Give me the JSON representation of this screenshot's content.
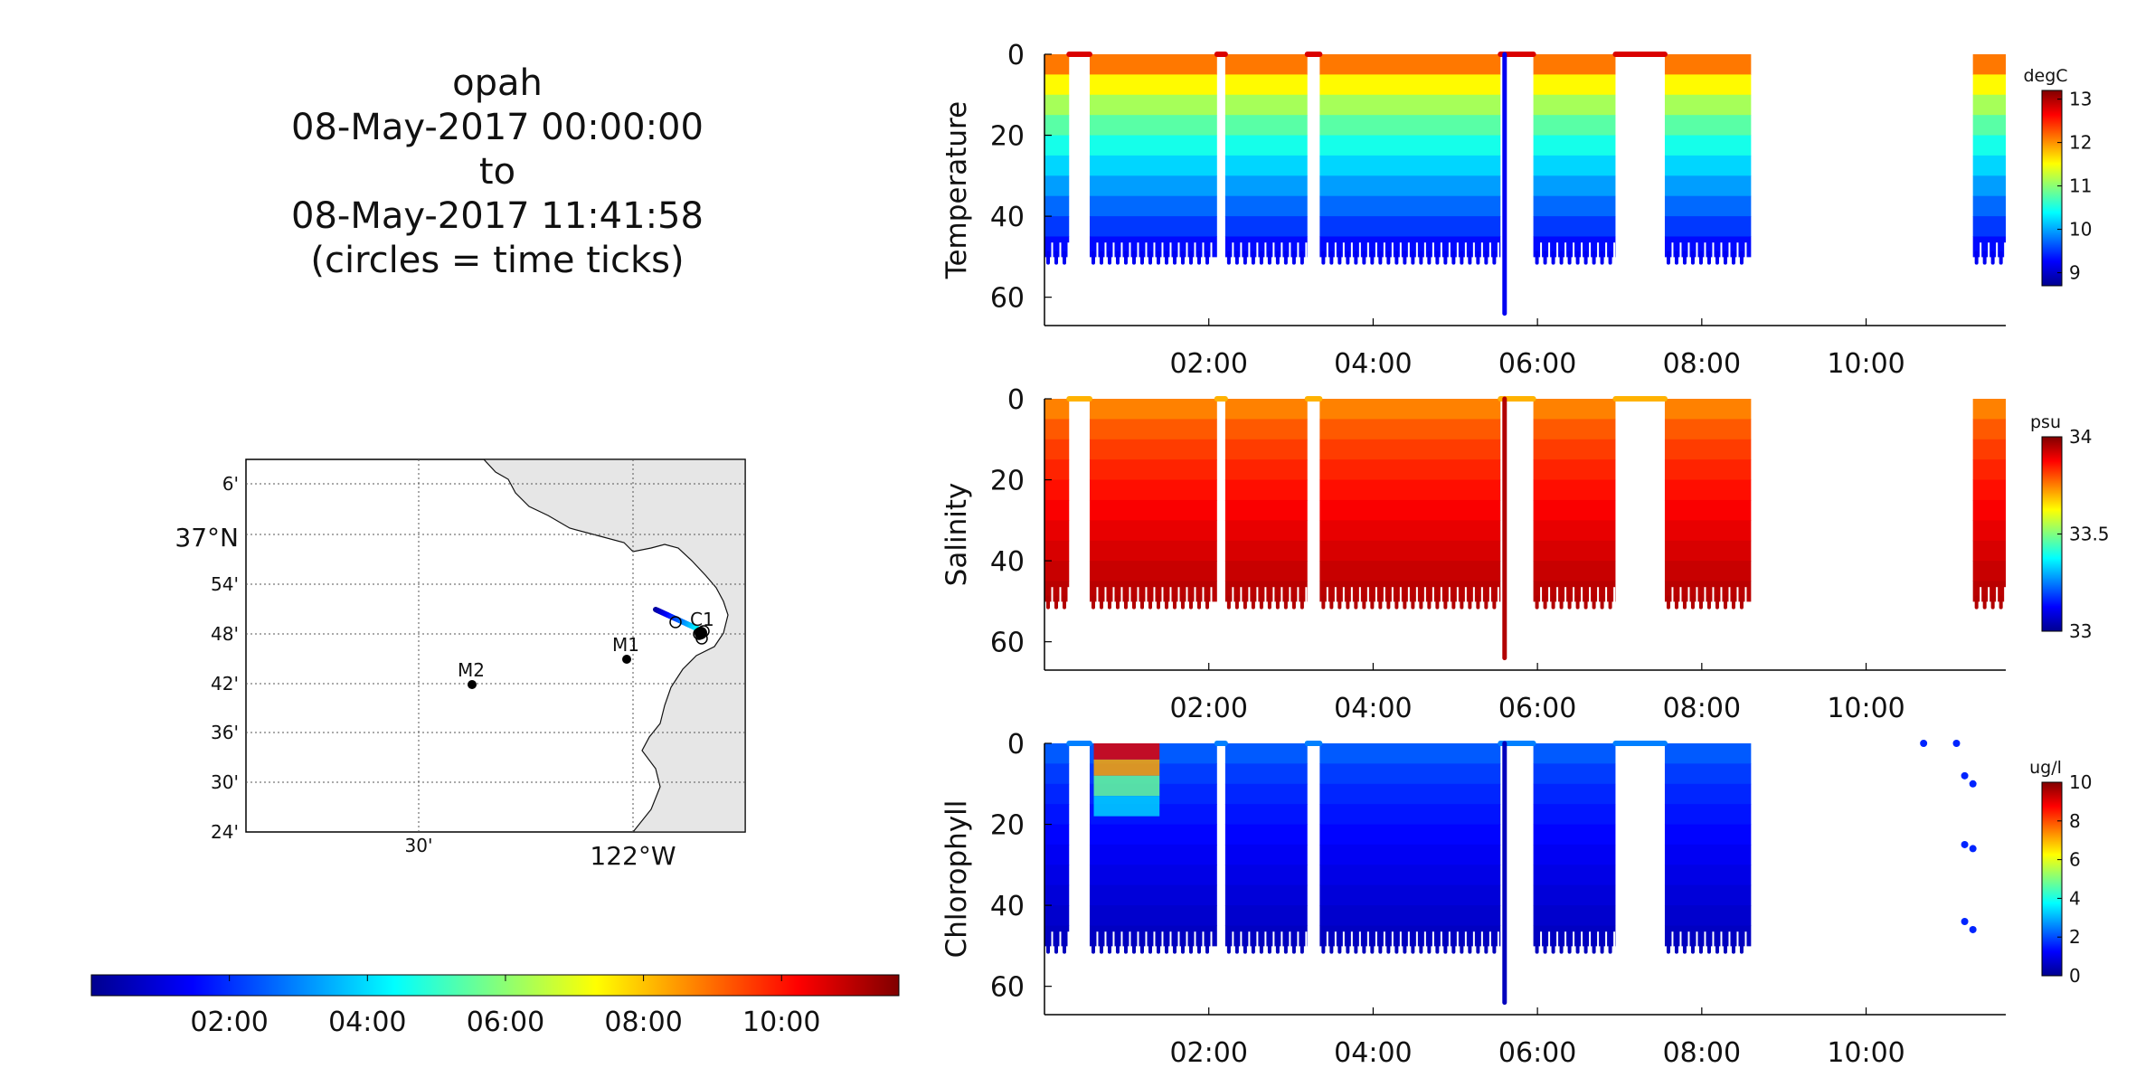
{
  "title": {
    "platform": "opah",
    "start": "08-May-2017 00:00:00",
    "to": "to",
    "end": "08-May-2017 11:41:58",
    "note": "(circles = time ticks)"
  },
  "map": {
    "lat_labels": [
      "6'",
      "37°N",
      "54'",
      "48'",
      "42'",
      "36'",
      "30'",
      "24'"
    ],
    "lon_labels": [
      "30'",
      "122°W"
    ],
    "stations": [
      {
        "name": "C1",
        "lat": 36.797,
        "lon": -121.85
      },
      {
        "name": "M1",
        "lat": 36.747,
        "lon": -122.02
      },
      {
        "name": "M2",
        "lat": 36.697,
        "lon": -122.39
      }
    ],
    "track_note": "vehicle track colored by time, circles = time ticks"
  },
  "time_colorbar": {
    "ticks": [
      "02:00",
      "04:00",
      "06:00",
      "08:00",
      "10:00"
    ],
    "range_hours": [
      0,
      11.7
    ]
  },
  "chart_data": [
    {
      "type": "heatmap",
      "title": "",
      "ylabel": "Temperature",
      "units": "degC",
      "xlabel": "",
      "xlim_hours": [
        0,
        11.7
      ],
      "x_ticks": [
        "02:00",
        "04:00",
        "06:00",
        "08:00",
        "10:00"
      ],
      "y_ticks": [
        "0",
        "20",
        "40",
        "60"
      ],
      "ylim_depth_m": [
        0,
        67
      ],
      "colorbar": {
        "min": 8.7,
        "max": 13.2,
        "ticks": [
          "13",
          "12",
          "11",
          "10",
          "9"
        ],
        "colormap": "jet"
      },
      "profiles": [
        {
          "start_h": 0.0,
          "end_h": 0.3,
          "max_depth_m": 50
        },
        {
          "start_h": 0.55,
          "end_h": 2.1,
          "max_depth_m": 50
        },
        {
          "start_h": 2.2,
          "end_h": 3.2,
          "max_depth_m": 50
        },
        {
          "start_h": 3.35,
          "end_h": 5.55,
          "max_depth_m": 50
        },
        {
          "start_h": 5.95,
          "end_h": 6.95,
          "max_depth_m": 50
        },
        {
          "start_h": 7.55,
          "end_h": 8.6,
          "max_depth_m": 50
        },
        {
          "start_h": 11.3,
          "end_h": 11.7,
          "max_depth_m": 50
        }
      ],
      "surface_value": 12.8,
      "deep_value": 9.2,
      "spike": {
        "time_h": 5.6,
        "depth_m": 64
      }
    },
    {
      "type": "heatmap",
      "title": "",
      "ylabel": "Salinity",
      "units": "psu",
      "xlabel": "",
      "xlim_hours": [
        0,
        11.7
      ],
      "x_ticks": [
        "02:00",
        "04:00",
        "06:00",
        "08:00",
        "10:00"
      ],
      "y_ticks": [
        "0",
        "20",
        "40",
        "60"
      ],
      "ylim_depth_m": [
        0,
        67
      ],
      "colorbar": {
        "min": 33.0,
        "max": 34.0,
        "ticks": [
          "34",
          "33.5",
          "33"
        ],
        "colormap": "jet"
      },
      "profiles": [
        {
          "start_h": 0.0,
          "end_h": 0.3,
          "max_depth_m": 50
        },
        {
          "start_h": 0.55,
          "end_h": 2.1,
          "max_depth_m": 50
        },
        {
          "start_h": 2.2,
          "end_h": 3.2,
          "max_depth_m": 50
        },
        {
          "start_h": 3.35,
          "end_h": 5.55,
          "max_depth_m": 50
        },
        {
          "start_h": 5.95,
          "end_h": 6.95,
          "max_depth_m": 50
        },
        {
          "start_h": 7.55,
          "end_h": 8.6,
          "max_depth_m": 50
        },
        {
          "start_h": 11.3,
          "end_h": 11.7,
          "max_depth_m": 50
        }
      ],
      "surface_value": 33.7,
      "deep_value": 33.95,
      "spike": {
        "time_h": 5.6,
        "depth_m": 64
      }
    },
    {
      "type": "heatmap",
      "title": "",
      "ylabel": "Chlorophyll",
      "units": "ug/l",
      "xlabel": "",
      "xlim_hours": [
        0,
        11.7
      ],
      "x_ticks": [
        "02:00",
        "04:00",
        "06:00",
        "08:00",
        "10:00"
      ],
      "y_ticks": [
        "0",
        "20",
        "40",
        "60"
      ],
      "ylim_depth_m": [
        0,
        67
      ],
      "colorbar": {
        "min": 0,
        "max": 10,
        "ticks": [
          "10",
          "8",
          "6",
          "4",
          "2",
          "0"
        ],
        "colormap": "jet"
      },
      "profiles": [
        {
          "start_h": 0.0,
          "end_h": 0.3,
          "max_depth_m": 50
        },
        {
          "start_h": 0.55,
          "end_h": 2.1,
          "max_depth_m": 50
        },
        {
          "start_h": 2.2,
          "end_h": 3.2,
          "max_depth_m": 50
        },
        {
          "start_h": 3.35,
          "end_h": 5.55,
          "max_depth_m": 50
        },
        {
          "start_h": 5.95,
          "end_h": 6.95,
          "max_depth_m": 50
        },
        {
          "start_h": 7.55,
          "end_h": 8.6,
          "max_depth_m": 50
        }
      ],
      "surface_value": 2.5,
      "deep_value": 0.6,
      "bloom": {
        "start_h": 0.6,
        "end_h": 1.4,
        "max_value": 9.5
      },
      "spike": {
        "time_h": 5.6,
        "depth_m": 64
      },
      "isolated_points": [
        {
          "time_h": 10.7,
          "depth_m": 0
        },
        {
          "time_h": 11.1,
          "depth_m": 0
        },
        {
          "time_h": 11.2,
          "depth_m": 8
        },
        {
          "time_h": 11.3,
          "depth_m": 10
        },
        {
          "time_h": 11.2,
          "depth_m": 25
        },
        {
          "time_h": 11.3,
          "depth_m": 26
        },
        {
          "time_h": 11.2,
          "depth_m": 44
        },
        {
          "time_h": 11.3,
          "depth_m": 46
        }
      ]
    }
  ]
}
